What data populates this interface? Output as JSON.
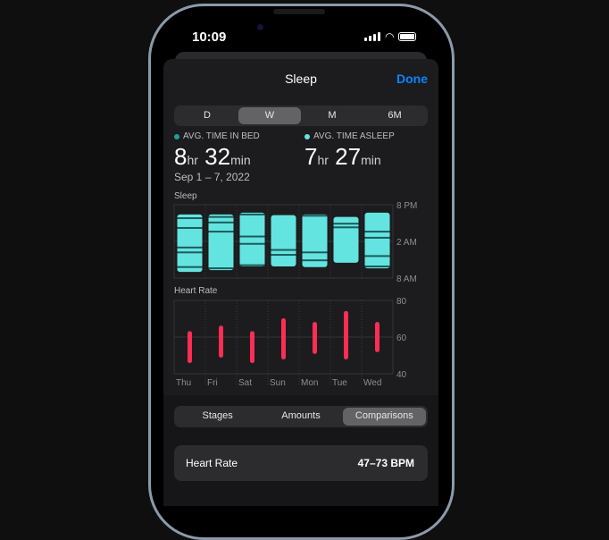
{
  "status": {
    "time": "10:09"
  },
  "header": {
    "title": "Sleep",
    "done": "Done"
  },
  "range_tabs": [
    {
      "label": "D",
      "selected": false
    },
    {
      "label": "W",
      "selected": true
    },
    {
      "label": "M",
      "selected": false
    },
    {
      "label": "6M",
      "selected": false
    }
  ],
  "summary": {
    "in_bed": {
      "label": "AVG. TIME IN BED",
      "hours": "8",
      "hr": "hr",
      "minutes": "32",
      "min": "min",
      "color": "#1f9e96"
    },
    "asleep": {
      "label": "AVG. TIME ASLEEP",
      "hours": "7",
      "hr": "hr",
      "minutes": "27",
      "min": "min",
      "color": "#64e4e0"
    },
    "date_range": "Sep 1 – 7, 2022"
  },
  "colors": {
    "sleep": "#64e4e0",
    "awake": "#1c5b5a",
    "heart": "#ff2d55",
    "accent": "#0a84ff"
  },
  "chart_data": [
    {
      "type": "bar",
      "title": "Sleep",
      "categories": [
        "Thu",
        "Fri",
        "Sat",
        "Sun",
        "Mon",
        "Tue",
        "Wed"
      ],
      "y_ticks": [
        "8 PM",
        "2 AM",
        "8 AM"
      ],
      "ylim": [
        "20:00",
        "08:00"
      ],
      "series": [
        {
          "start": "21:36",
          "end": "07:00",
          "awake": [
            "22:12",
            "23:48",
            "03:00",
            "03:48",
            "06:12"
          ]
        },
        {
          "start": "21:36",
          "end": "06:42",
          "awake": [
            "22:00",
            "22:54",
            "00:24",
            "06:24"
          ]
        },
        {
          "start": "21:18",
          "end": "06:06",
          "awake": [
            "21:36",
            "01:12",
            "02:24",
            "05:54"
          ]
        },
        {
          "start": "21:42",
          "end": "06:06",
          "awake": [
            "03:24",
            "04:12"
          ]
        },
        {
          "start": "21:36",
          "end": "06:12",
          "awake": [
            "21:48",
            "03:48",
            "05:06"
          ]
        },
        {
          "start": "22:00",
          "end": "05:30",
          "awake": [
            "23:06",
            "23:42"
          ]
        },
        {
          "start": "21:18",
          "end": "06:24",
          "awake": [
            "00:24",
            "01:24",
            "04:24",
            "06:06"
          ]
        }
      ]
    },
    {
      "type": "bar",
      "title": "Heart Rate",
      "categories": [
        "Thu",
        "Fri",
        "Sat",
        "Sun",
        "Mon",
        "Tue",
        "Wed"
      ],
      "y_ticks": [
        "80",
        "60",
        "40"
      ],
      "ylim": [
        40,
        80
      ],
      "ranges": [
        [
          47,
          62
        ],
        [
          50,
          65
        ],
        [
          47,
          62
        ],
        [
          49,
          69
        ],
        [
          52,
          67
        ],
        [
          49,
          73
        ],
        [
          53,
          67
        ]
      ]
    }
  ],
  "view_tabs": [
    {
      "label": "Stages",
      "selected": false
    },
    {
      "label": "Amounts",
      "selected": false
    },
    {
      "label": "Comparisons",
      "selected": true
    }
  ],
  "card": {
    "label": "Heart Rate",
    "value": "47–73 BPM"
  }
}
